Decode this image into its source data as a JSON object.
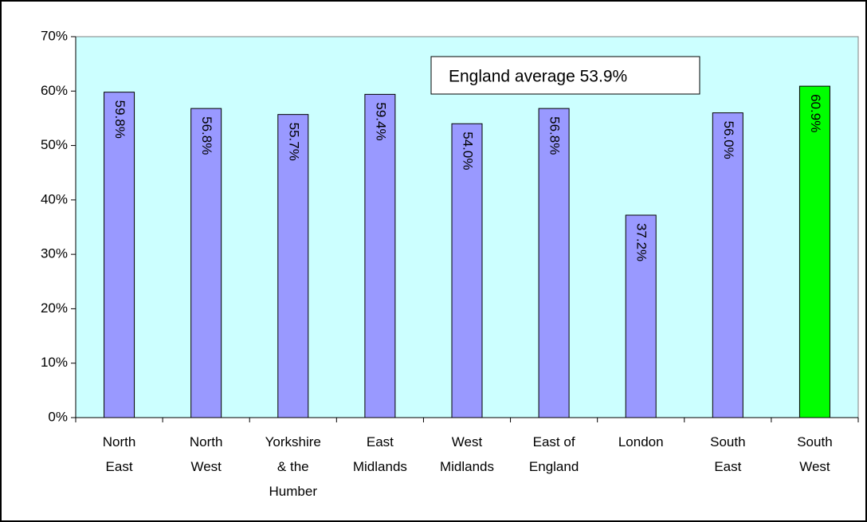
{
  "chart_data": {
    "type": "bar",
    "categories": [
      "North East",
      "North West",
      "Yorkshire & the Humber",
      "East Midlands",
      "West Midlands",
      "East of England",
      "London",
      "South East",
      "South West"
    ],
    "values": [
      59.8,
      56.8,
      55.7,
      59.4,
      54.0,
      56.8,
      37.2,
      56.0,
      60.9
    ],
    "value_labels": [
      "59.8%",
      "56.8%",
      "55.7%",
      "59.4%",
      "54.0%",
      "56.8%",
      "37.2%",
      "56.0%",
      "60.9%"
    ],
    "colors": [
      "#9999ff",
      "#9999ff",
      "#9999ff",
      "#9999ff",
      "#9999ff",
      "#9999ff",
      "#9999ff",
      "#9999ff",
      "#00ff00"
    ],
    "annotation": "England average 53.9%",
    "ylim": [
      0,
      70
    ],
    "yticks": [
      {
        "value": 0,
        "label": "0%"
      },
      {
        "value": 10,
        "label": "10%"
      },
      {
        "value": 20,
        "label": "20%"
      },
      {
        "value": 30,
        "label": "30%"
      },
      {
        "value": 40,
        "label": "40%"
      },
      {
        "value": 50,
        "label": "50%"
      },
      {
        "value": 60,
        "label": "60%"
      },
      {
        "value": 70,
        "label": "70%"
      }
    ],
    "plot_background": "#ccffff"
  }
}
